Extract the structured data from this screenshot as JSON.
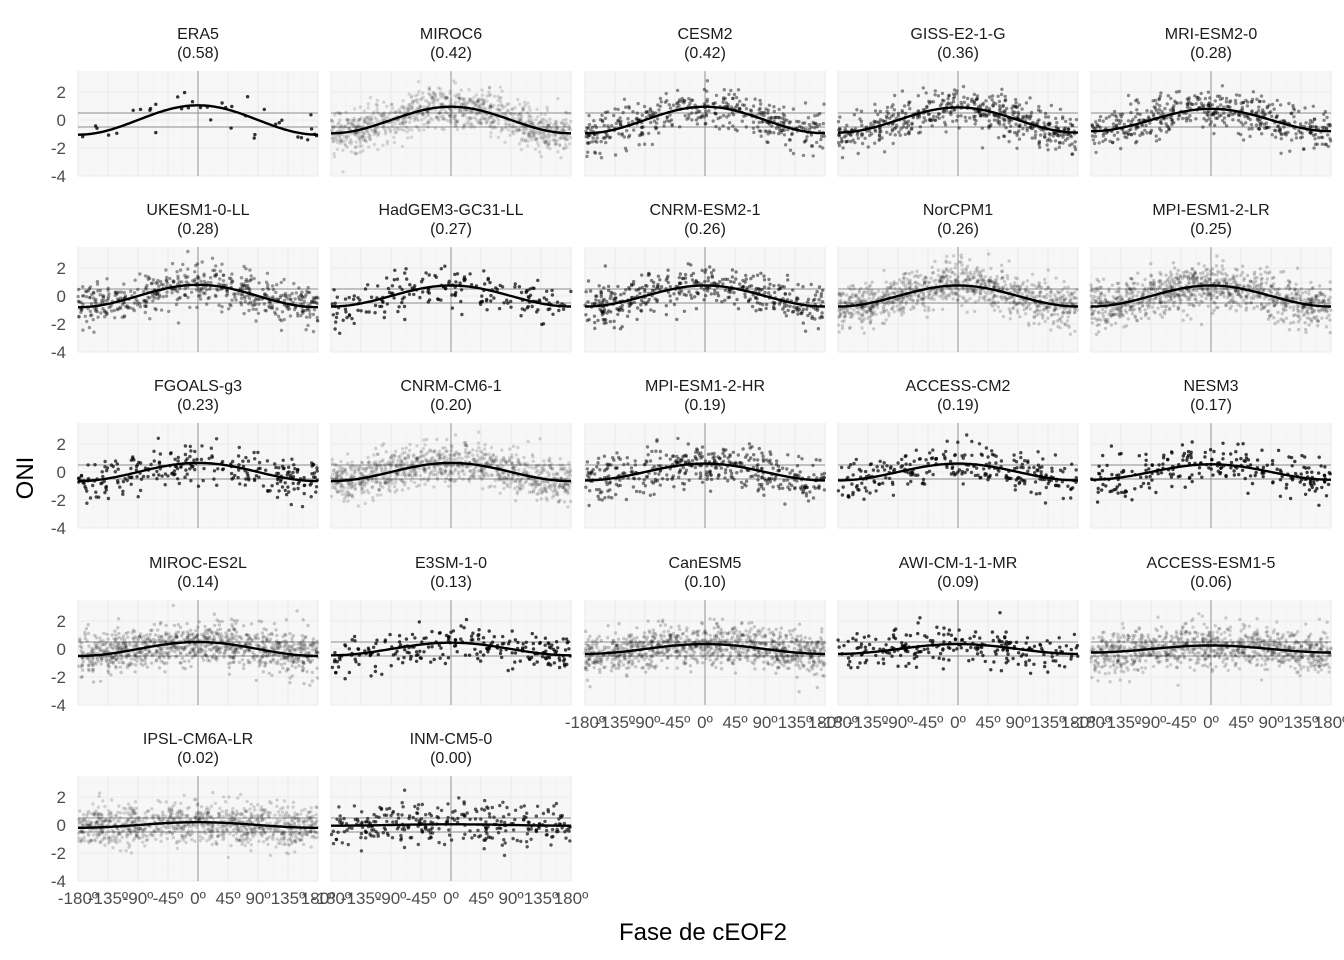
{
  "chart_data": {
    "type": "scatter",
    "xlabel": "Fase de cEOF2",
    "ylabel": "ONI",
    "xlim": [
      -180,
      180
    ],
    "ylim": [
      -4,
      3.5
    ],
    "x_ticks": [
      -180,
      -135,
      -90,
      -45,
      0,
      45,
      90,
      135,
      180
    ],
    "x_tick_labels": [
      "-180º",
      "-135º",
      "-90º",
      "-45º",
      "0º",
      "45º",
      "90º",
      "135º",
      "180º"
    ],
    "y_ticks": [
      -4,
      -2,
      0,
      2
    ],
    "y_tick_labels": [
      "-4",
      "-2",
      "0",
      "2"
    ],
    "reference_lines": {
      "vertical_x": 0,
      "horizontal_y": [
        -0.5,
        0.5
      ]
    },
    "grid": true,
    "legend": "none",
    "colors": {
      "points": "#000000",
      "fit": "#000000",
      "reference": "#8c8c8c",
      "grid": "#ebebeb",
      "panel_background": "#f7f7f7"
    },
    "fit_curve": "sinusoidal fit, ONI = A·sin(phase + 90º)",
    "panels": [
      {
        "model": "ERA5",
        "score": "(0.58)",
        "amplitude": 1.05,
        "n_points": 38,
        "point_alpha": 0.8
      },
      {
        "model": "MIROC6",
        "score": "(0.42)",
        "amplitude": 0.95,
        "n_points": 1000,
        "point_alpha": 0.14
      },
      {
        "model": "CESM2",
        "score": "(0.42)",
        "amplitude": 0.95,
        "n_points": 420,
        "point_alpha": 0.45
      },
      {
        "model": "GISS-E2-1-G",
        "score": "(0.36)",
        "amplitude": 0.9,
        "n_points": 520,
        "point_alpha": 0.45
      },
      {
        "model": "MRI-ESM2-0",
        "score": "(0.28)",
        "amplitude": 0.8,
        "n_points": 480,
        "point_alpha": 0.45
      },
      {
        "model": "UKESM1-0-LL",
        "score": "(0.28)",
        "amplitude": 0.8,
        "n_points": 520,
        "point_alpha": 0.4
      },
      {
        "model": "HadGEM3-GC31-LL",
        "score": "(0.27)",
        "amplitude": 0.75,
        "n_points": 200,
        "point_alpha": 0.7
      },
      {
        "model": "CNRM-ESM2-1",
        "score": "(0.26)",
        "amplitude": 0.75,
        "n_points": 420,
        "point_alpha": 0.5
      },
      {
        "model": "NorCPM1",
        "score": "(0.26)",
        "amplitude": 0.75,
        "n_points": 1000,
        "point_alpha": 0.18
      },
      {
        "model": "MPI-ESM1-2-LR",
        "score": "(0.25)",
        "amplitude": 0.75,
        "n_points": 1000,
        "point_alpha": 0.2
      },
      {
        "model": "FGOALS-g3",
        "score": "(0.23)",
        "amplitude": 0.65,
        "n_points": 260,
        "point_alpha": 0.7
      },
      {
        "model": "CNRM-CM6-1",
        "score": "(0.20)",
        "amplitude": 0.65,
        "n_points": 1000,
        "point_alpha": 0.16
      },
      {
        "model": "MPI-ESM1-2-HR",
        "score": "(0.19)",
        "amplitude": 0.6,
        "n_points": 420,
        "point_alpha": 0.5
      },
      {
        "model": "ACCESS-CM2",
        "score": "(0.19)",
        "amplitude": 0.6,
        "n_points": 260,
        "point_alpha": 0.7
      },
      {
        "model": "NESM3",
        "score": "(0.17)",
        "amplitude": 0.55,
        "n_points": 240,
        "point_alpha": 0.75
      },
      {
        "model": "MIROC-ES2L",
        "score": "(0.14)",
        "amplitude": 0.5,
        "n_points": 1000,
        "point_alpha": 0.2
      },
      {
        "model": "E3SM-1-0",
        "score": "(0.13)",
        "amplitude": 0.45,
        "n_points": 230,
        "point_alpha": 0.75
      },
      {
        "model": "CanESM5",
        "score": "(0.10)",
        "amplitude": 0.35,
        "n_points": 1000,
        "point_alpha": 0.2
      },
      {
        "model": "AWI-CM-1-1-MR",
        "score": "(0.09)",
        "amplitude": 0.35,
        "n_points": 230,
        "point_alpha": 0.75
      },
      {
        "model": "ACCESS-ESM1-5",
        "score": "(0.06)",
        "amplitude": 0.25,
        "n_points": 1000,
        "point_alpha": 0.18
      },
      {
        "model": "IPSL-CM6A-LR",
        "score": "(0.02)",
        "amplitude": 0.2,
        "n_points": 1000,
        "point_alpha": 0.16
      },
      {
        "model": "INM-CM5-0",
        "score": "(0.00)",
        "amplitude": 0.05,
        "n_points": 300,
        "point_alpha": 0.65
      }
    ]
  }
}
